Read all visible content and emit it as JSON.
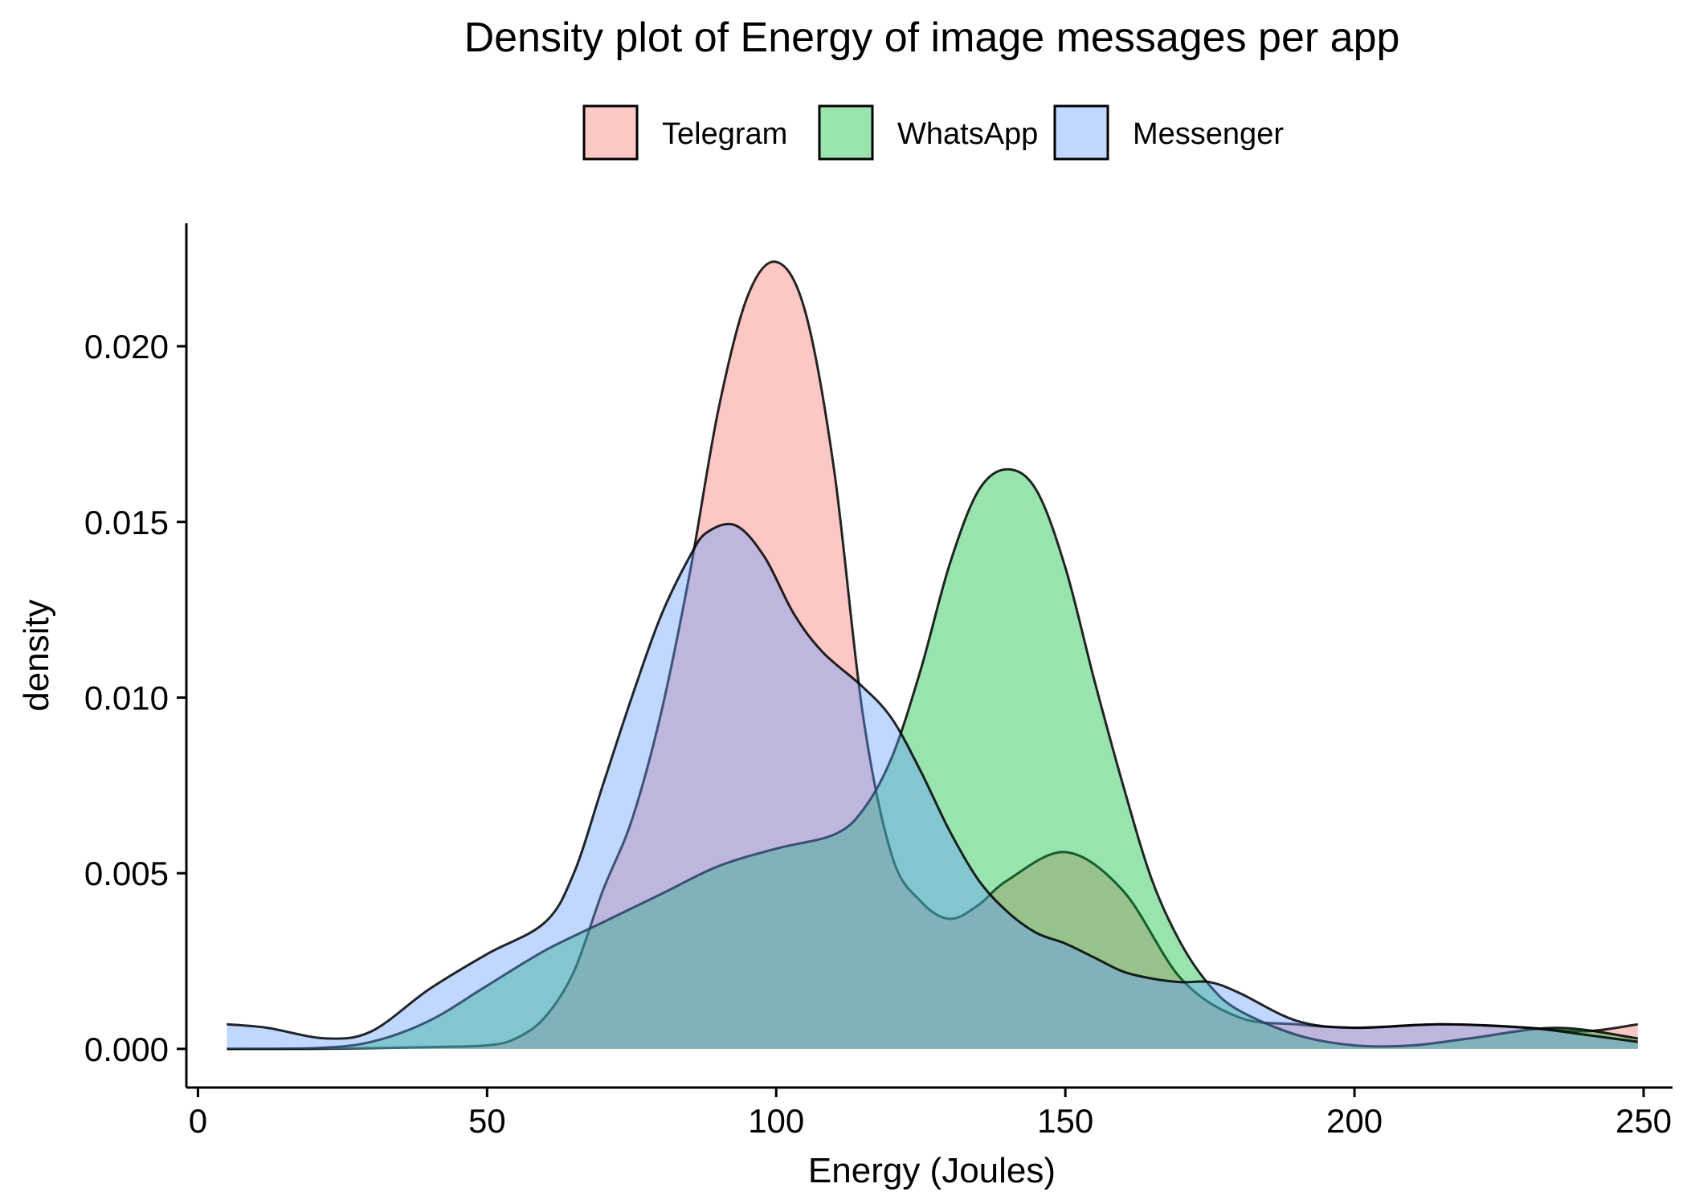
{
  "chart_data": {
    "type": "area",
    "title": "Density plot of Energy of image messages per app",
    "xlabel": "Energy (Joules)",
    "ylabel": "density",
    "xlim": [
      -2,
      255
    ],
    "ylim": [
      -0.0011,
      0.0235
    ],
    "x_ticks": [
      {
        "value": 0,
        "label": "0"
      },
      {
        "value": 50,
        "label": "50"
      },
      {
        "value": 100,
        "label": "100"
      },
      {
        "value": 150,
        "label": "150"
      },
      {
        "value": 200,
        "label": "200"
      },
      {
        "value": 250,
        "label": "250"
      }
    ],
    "y_ticks": [
      {
        "value": 0.0,
        "label": "0.000"
      },
      {
        "value": 0.005,
        "label": "0.005"
      },
      {
        "value": 0.01,
        "label": "0.010"
      },
      {
        "value": 0.015,
        "label": "0.015"
      },
      {
        "value": 0.02,
        "label": "0.020"
      }
    ],
    "grid": false,
    "legend_position": "top",
    "series": [
      {
        "name": "Telegram",
        "color": "#F8766D",
        "x": [
          5,
          20,
          30,
          40,
          50,
          55,
          60,
          65,
          70,
          75,
          80,
          85,
          90,
          95,
          100,
          105,
          110,
          115,
          120,
          125,
          130,
          135,
          140,
          150,
          160,
          170,
          180,
          190,
          200,
          215,
          230,
          240,
          249
        ],
        "y": [
          0,
          0,
          2e-05,
          5e-05,
          0.0001,
          0.0003,
          0.0009,
          0.0022,
          0.0045,
          0.0065,
          0.0095,
          0.0135,
          0.0182,
          0.0214,
          0.0224,
          0.021,
          0.0165,
          0.0095,
          0.0055,
          0.0042,
          0.0037,
          0.0041,
          0.0048,
          0.0056,
          0.0045,
          0.002,
          0.0009,
          0.0007,
          0.0006,
          0.0007,
          0.0006,
          0.0005,
          0.0007
        ]
      },
      {
        "name": "WhatsApp",
        "color": "#00BA38",
        "x": [
          5,
          20,
          30,
          40,
          50,
          60,
          70,
          80,
          90,
          100,
          110,
          115,
          120,
          125,
          130,
          135,
          140,
          145,
          150,
          155,
          160,
          165,
          170,
          175,
          180,
          190,
          200,
          210,
          220,
          235,
          249
        ],
        "y": [
          0,
          2e-05,
          0.0002,
          0.0008,
          0.0018,
          0.0028,
          0.0036,
          0.0044,
          0.0052,
          0.0057,
          0.0061,
          0.0068,
          0.0083,
          0.0108,
          0.0138,
          0.0159,
          0.0165,
          0.0159,
          0.0137,
          0.0105,
          0.0075,
          0.0048,
          0.003,
          0.0018,
          0.0011,
          0.0004,
          0.0001,
          0.0001,
          0.0003,
          0.0006,
          0.0003
        ]
      },
      {
        "name": "Messenger",
        "color": "#619CFF",
        "x": [
          5,
          12,
          22,
          30,
          40,
          50,
          60,
          65,
          70,
          75,
          80,
          85,
          88,
          93,
          98,
          103,
          108,
          115,
          120,
          125,
          130,
          135,
          140,
          145,
          150,
          155,
          160,
          165,
          170,
          175,
          180,
          190,
          200,
          215,
          230,
          240,
          249
        ],
        "y": [
          0.0007,
          0.0006,
          0.0003,
          0.0005,
          0.0017,
          0.0027,
          0.0036,
          0.005,
          0.0075,
          0.01,
          0.0123,
          0.014,
          0.0147,
          0.0149,
          0.014,
          0.0124,
          0.0113,
          0.0103,
          0.0094,
          0.0079,
          0.0062,
          0.0048,
          0.0039,
          0.0033,
          0.003,
          0.0026,
          0.0022,
          0.002,
          0.0019,
          0.0019,
          0.0016,
          0.0008,
          0.0006,
          0.0007,
          0.0006,
          0.0004,
          0.0002
        ]
      }
    ]
  }
}
